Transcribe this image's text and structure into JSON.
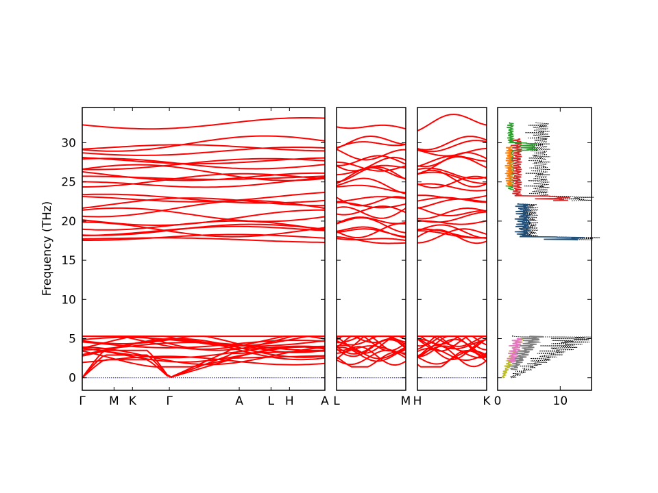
{
  "chart_data": {
    "type": "line",
    "ylabel": "Frequency (THz)",
    "ylim": [
      -1.6,
      34.5
    ],
    "yticks": [
      0,
      5,
      10,
      15,
      20,
      25,
      30
    ],
    "band_color": "#ff0000",
    "zero_line_color": "#0000ff",
    "grid": false,
    "panels": [
      {
        "name": "Γ-M-K-Γ-A-L-H-A",
        "xticks": [
          {
            "label": "Γ",
            "pos": 0.0
          },
          {
            "label": "M",
            "pos": 0.131
          },
          {
            "label": "K",
            "pos": 0.207
          },
          {
            "label": "Γ",
            "pos": 0.359
          },
          {
            "label": "A",
            "pos": 0.647
          },
          {
            "label": "L",
            "pos": 0.778
          },
          {
            "label": "H",
            "pos": 0.854
          },
          {
            "label": "A",
            "pos": 1.0
          }
        ]
      },
      {
        "name": "L-M",
        "xticks": [
          {
            "label": "L",
            "pos": 0.0
          },
          {
            "label": "M",
            "pos": 1.0
          }
        ]
      },
      {
        "name": "H-K",
        "xticks": [
          {
            "label": "H",
            "pos": 0.0
          },
          {
            "label": "K",
            "pos": 1.0
          }
        ]
      }
    ],
    "dos": {
      "xlim": [
        0,
        15
      ],
      "xticks": [
        0,
        10
      ],
      "total_color": "#000000",
      "projected_colors": [
        "#1f4e79",
        "#d62728",
        "#2ca02c",
        "#ff7f0e",
        "#7f7f7f",
        "#bcbd22",
        "#e377c2"
      ]
    },
    "optical_bands_start": [
      17.8,
      17.9,
      18.6,
      18.8,
      19.0,
      19.7,
      20.0,
      20.8,
      21.5,
      22.0,
      22.7,
      23.0,
      24.5,
      25.0,
      25.5,
      26.0,
      26.3,
      27.0,
      27.4,
      27.8,
      28.8,
      29.4,
      29.8,
      32.3
    ],
    "acoustic_low_start": [
      0,
      0,
      0
    ],
    "acoustic_high_start": [
      2.6,
      2.8,
      3.0,
      3.3,
      3.8,
      4.0,
      4.3,
      4.6,
      4.9,
      5.1,
      5.2,
      2.2,
      3.6,
      4.5,
      4.8
    ]
  }
}
